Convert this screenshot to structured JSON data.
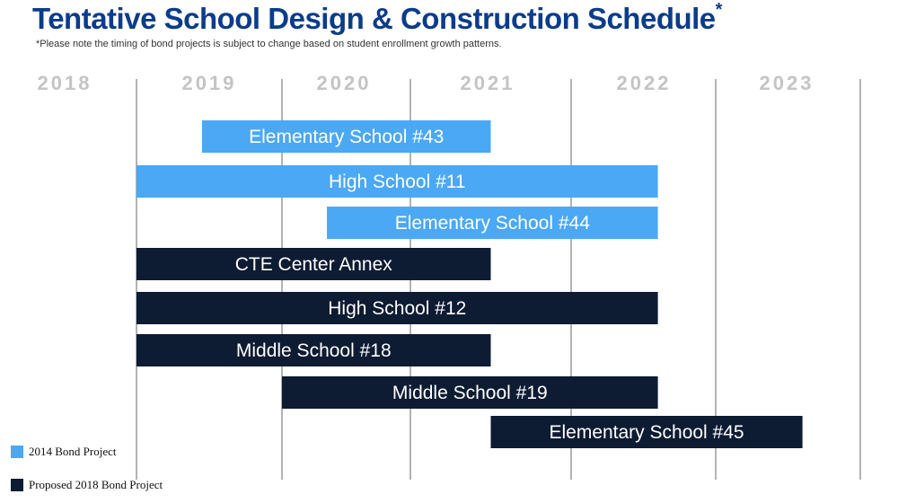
{
  "chart_data": {
    "type": "gantt",
    "title": "Tentative School Design & Construction Schedule",
    "title_mark": "*",
    "note": "*Please note the timing of bond projects is subject to change based on student enrollment growth patterns.",
    "x_axis": {
      "ticks": [
        "2018",
        "2019",
        "2020",
        "2021",
        "2022",
        "2023"
      ],
      "range": [
        2018,
        2024
      ],
      "grid": true
    },
    "series": [
      {
        "name": "2014 Bond Project",
        "color": "#4ba8f5"
      },
      {
        "name": "Proposed 2018 Bond Project",
        "color": "#0d1b33"
      }
    ],
    "tasks": [
      {
        "label": "Elementary School #43",
        "series": 0,
        "start": 2019.45,
        "end": 2021.5
      },
      {
        "label": "High School #11",
        "series": 0,
        "start": 2019.0,
        "end": 2022.6
      },
      {
        "label": "Elementary School #44",
        "series": 0,
        "start": 2020.35,
        "end": 2022.6
      },
      {
        "label": "CTE Center Annex",
        "series": 1,
        "start": 2019.0,
        "end": 2021.5
      },
      {
        "label": "High School #12",
        "series": 1,
        "start": 2019.0,
        "end": 2022.6
      },
      {
        "label": "Middle School #18",
        "series": 1,
        "start": 2019.0,
        "end": 2021.5
      },
      {
        "label": "Middle School #19",
        "series": 1,
        "start": 2020.0,
        "end": 2022.6
      },
      {
        "label": "Elementary School #45",
        "series": 1,
        "start": 2021.5,
        "end": 2023.6
      }
    ],
    "legend_placement": "bottom-left"
  }
}
